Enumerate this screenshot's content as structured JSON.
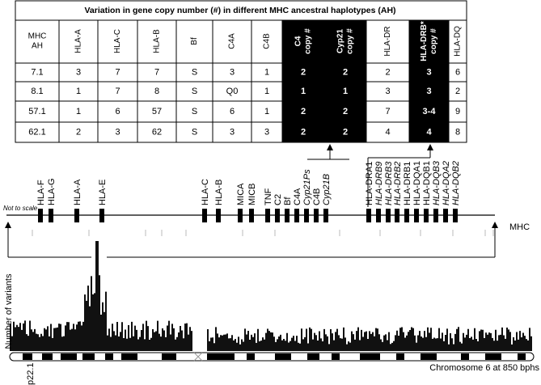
{
  "table": {
    "title": "Variation in gene copy number (#) in  different MHC ancestral haplotypes (AH)",
    "headers": [
      [
        "MHC",
        "AH"
      ],
      [
        "HLA-A"
      ],
      [
        "HLA-C"
      ],
      [
        "HLA-B"
      ],
      [
        "Bf"
      ],
      [
        "C4A"
      ],
      [
        "C4B"
      ],
      [
        "C4",
        "copy #"
      ],
      [
        "Cyp21",
        "copy #"
      ],
      [
        "HLA-DR"
      ],
      [
        "HLA-DRB*",
        "copy #"
      ],
      [
        "HLA-DQ"
      ]
    ],
    "rows": [
      [
        "7.1",
        "3",
        "7",
        "7",
        "S",
        "3",
        "1",
        "2",
        "2",
        "2",
        "3",
        "6"
      ],
      [
        "8.1",
        "1",
        "7",
        "8",
        "S",
        "Q0",
        "1",
        "1",
        "1",
        "3",
        "3",
        "2"
      ],
      [
        "57.1",
        "1",
        "6",
        "57",
        "S",
        "6",
        "1",
        "2",
        "2",
        "7",
        "3-4",
        "9"
      ],
      [
        "62.1",
        "2",
        "3",
        "62",
        "S",
        "3",
        "3",
        "2",
        "2",
        "4",
        "4",
        "8"
      ]
    ]
  },
  "map": {
    "note": "Not to scale",
    "region": "MHC",
    "genes": [
      "HLA-F",
      "HLA-G",
      "HLA-A",
      "HLA-E",
      "HLA-C",
      "HLA-B",
      "MICA",
      "MICB",
      "TNF",
      "C2",
      "Bf",
      "C4A",
      "Cyp21Ps",
      "C4B",
      "Cyp21B",
      "HLA-DRA1",
      "HLA-DRB9",
      "HLA-DRB3",
      "HLA-DRB2",
      "HLA-DRB1",
      "HLA-DQA1",
      "HLA-DQB1",
      "HLA-DQB3",
      "HLA-DQA2",
      "HLA-DQB2"
    ]
  },
  "histogram": {
    "y_label": "Number of variants",
    "band": "p22.1",
    "x_label": "Chromosome 6 at 850 bphs"
  }
}
